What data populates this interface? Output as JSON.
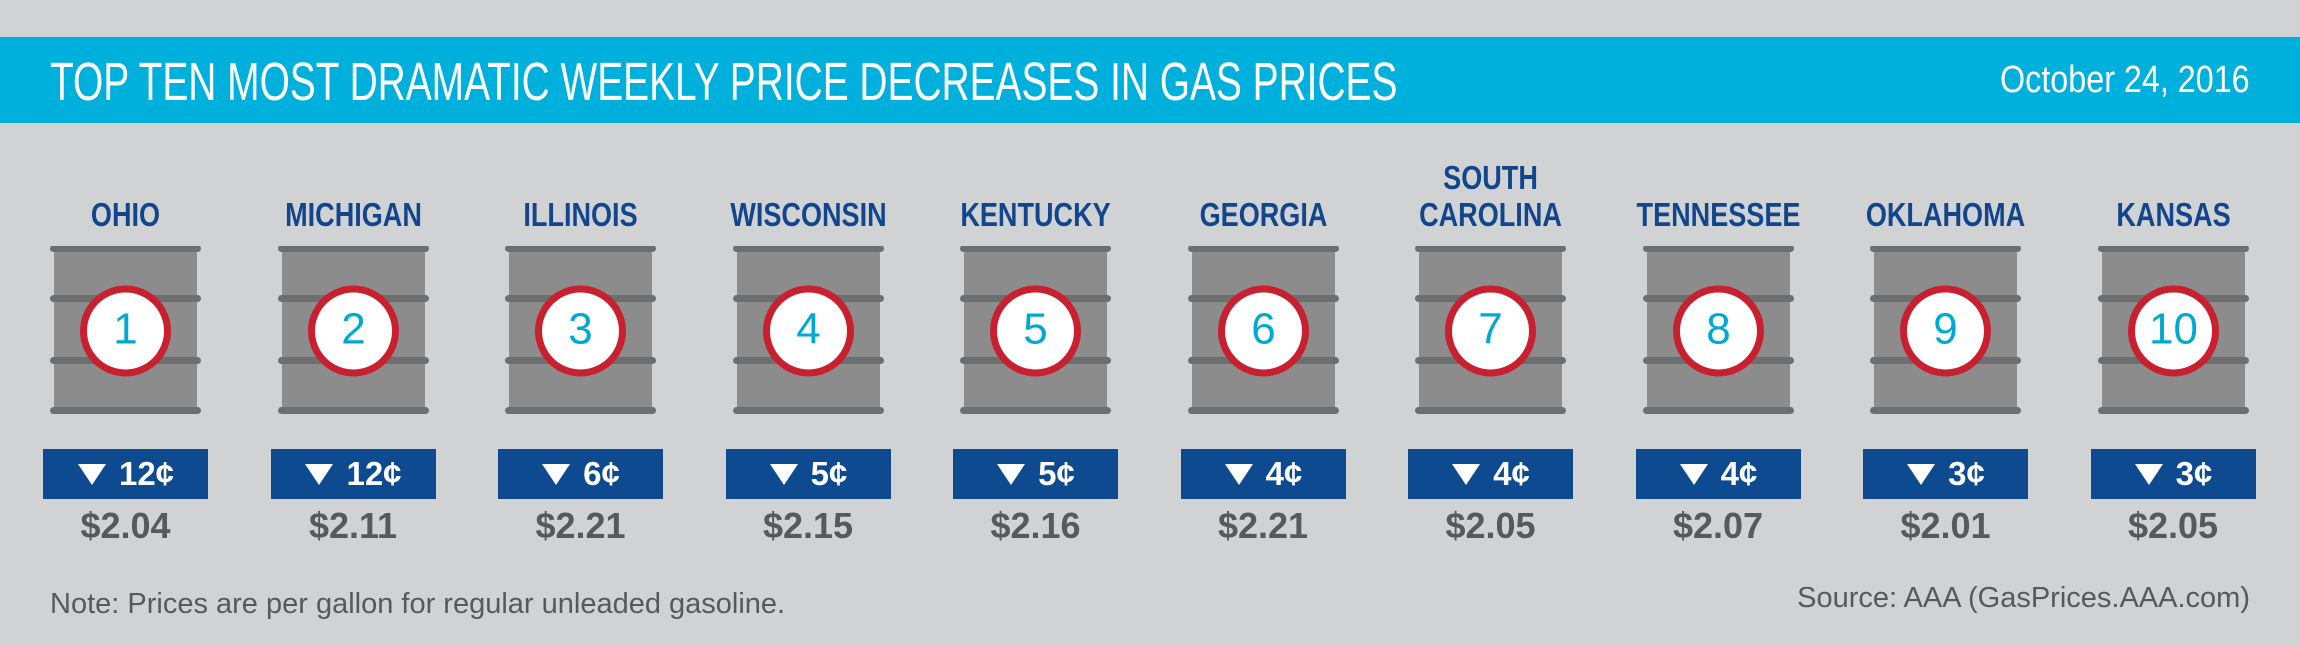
{
  "header": {
    "title": "TOP TEN MOST DRAMATIC WEEKLY PRICE DECREASES IN GAS PRICES",
    "date": "October 24, 2016"
  },
  "items": [
    {
      "rank": "1",
      "state": "OHIO",
      "change": "12¢",
      "price": "$2.04"
    },
    {
      "rank": "2",
      "state": "MICHIGAN",
      "change": "12¢",
      "price": "$2.11"
    },
    {
      "rank": "3",
      "state": "ILLINOIS",
      "change": "6¢",
      "price": "$2.21"
    },
    {
      "rank": "4",
      "state": "WISCONSIN",
      "change": "5¢",
      "price": "$2.15"
    },
    {
      "rank": "5",
      "state": "KENTUCKY",
      "change": "5¢",
      "price": "$2.16"
    },
    {
      "rank": "6",
      "state": "GEORGIA",
      "change": "4¢",
      "price": "$2.21"
    },
    {
      "rank": "7",
      "state": "SOUTH CAROLINA",
      "change": "4¢",
      "price": "$2.05"
    },
    {
      "rank": "8",
      "state": "TENNESSEE",
      "change": "4¢",
      "price": "$2.07"
    },
    {
      "rank": "9",
      "state": "OKLAHOMA",
      "change": "3¢",
      "price": "$2.01"
    },
    {
      "rank": "10",
      "state": "KANSAS",
      "change": "3¢",
      "price": "$2.05"
    }
  ],
  "footer": {
    "note": "Note: Prices are per gallon for regular unleaded gasoline.",
    "source": "Source: AAA (GasPrices.AAA.com)"
  }
}
